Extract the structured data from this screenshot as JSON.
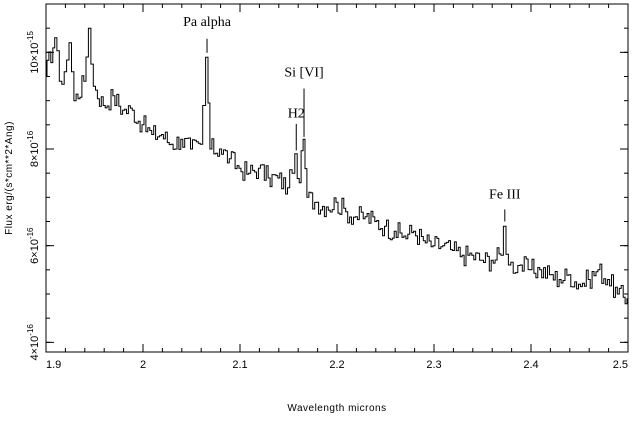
{
  "chart_data": {
    "type": "line",
    "title": "",
    "xlabel": "Wavelength  microns",
    "ylabel": "Flux  erg/(s*cm**2*Ang)",
    "xlim": [
      1.9,
      2.5
    ],
    "ylim": [
      3.8e-16,
      1.1e-15
    ],
    "grid": false,
    "legend": "none",
    "x_ticks": [
      1.9,
      2.0,
      2.1,
      2.2,
      2.3,
      2.4,
      2.5
    ],
    "x_tick_labels": [
      "1.9",
      "2",
      "2.1",
      "2.2",
      "2.3",
      "2.4",
      "2.5"
    ],
    "y_ticks": [
      4e-16,
      6e-16,
      8e-16,
      1e-15
    ],
    "y_tick_labels": [
      {
        "mant": "4",
        "exp": "-16"
      },
      {
        "mant": "6",
        "exp": "-16"
      },
      {
        "mant": "8",
        "exp": "-16"
      },
      {
        "mant": "10",
        "exp": "-15"
      }
    ],
    "series": [
      {
        "color": "#000000",
        "points": [
          [
            1.9,
            9.5e-16
          ],
          [
            1.91,
            1.03e-15
          ],
          [
            1.915,
            9.4e-16
          ],
          [
            1.92,
            9.6e-16
          ],
          [
            1.925,
            1.02e-15
          ],
          [
            1.93,
            9e-16
          ],
          [
            1.94,
            9.4e-16
          ],
          [
            1.945,
            1.05e-15
          ],
          [
            1.95,
            9.3e-16
          ],
          [
            1.96,
            8.9e-16
          ],
          [
            1.97,
            9.1e-16
          ],
          [
            1.98,
            8.8e-16
          ],
          [
            1.99,
            8.8e-16
          ],
          [
            2.0,
            8.5e-16
          ],
          [
            2.01,
            8.3e-16
          ],
          [
            2.02,
            8.3e-16
          ],
          [
            2.03,
            8.1e-16
          ],
          [
            2.04,
            8.2e-16
          ],
          [
            2.05,
            8e-16
          ],
          [
            2.06,
            8.1e-16
          ],
          [
            2.063,
            8.9e-16
          ],
          [
            2.066,
            9.9e-16
          ],
          [
            2.07,
            8e-16
          ],
          [
            2.08,
            8e-16
          ],
          [
            2.09,
            7.8e-16
          ],
          [
            2.1,
            7.6e-16
          ],
          [
            2.11,
            7.5e-16
          ],
          [
            2.12,
            7.6e-16
          ],
          [
            2.13,
            7.4e-16
          ],
          [
            2.14,
            7.4e-16
          ],
          [
            2.15,
            7.2e-16
          ],
          [
            2.155,
            7.5e-16
          ],
          [
            2.158,
            7.9e-16
          ],
          [
            2.162,
            7.3e-16
          ],
          [
            2.166,
            8.2e-16
          ],
          [
            2.17,
            7e-16
          ],
          [
            2.18,
            6.9e-16
          ],
          [
            2.19,
            6.8e-16
          ],
          [
            2.2,
            6.9e-16
          ],
          [
            2.21,
            6.7e-16
          ],
          [
            2.22,
            6.6e-16
          ],
          [
            2.23,
            6.6e-16
          ],
          [
            2.24,
            6.5e-16
          ],
          [
            2.25,
            6.4e-16
          ],
          [
            2.26,
            6.3e-16
          ],
          [
            2.27,
            6.2e-16
          ],
          [
            2.28,
            6.3e-16
          ],
          [
            2.29,
            6.1e-16
          ],
          [
            2.3,
            6e-16
          ],
          [
            2.31,
            6e-16
          ],
          [
            2.32,
            5.9e-16
          ],
          [
            2.33,
            5.8e-16
          ],
          [
            2.34,
            5.8e-16
          ],
          [
            2.35,
            5.7e-16
          ],
          [
            2.36,
            5.7e-16
          ],
          [
            2.37,
            5.8e-16
          ],
          [
            2.373,
            6.4e-16
          ],
          [
            2.378,
            5.6e-16
          ],
          [
            2.39,
            5.6e-16
          ],
          [
            2.4,
            5.5e-16
          ],
          [
            2.41,
            5.5e-16
          ],
          [
            2.42,
            5.4e-16
          ],
          [
            2.43,
            5.3e-16
          ],
          [
            2.44,
            5.4e-16
          ],
          [
            2.45,
            5.2e-16
          ],
          [
            2.46,
            5.3e-16
          ],
          [
            2.47,
            5.5e-16
          ],
          [
            2.48,
            5.3e-16
          ],
          [
            2.49,
            5e-16
          ],
          [
            2.5,
            4.9e-16
          ]
        ]
      }
    ],
    "annotations": [
      {
        "label": "Pa alpha",
        "x": 2.066,
        "y_line_bottom": 9.99e-16,
        "y_line_top": 1.028e-15,
        "y_text": 1.055e-15
      },
      {
        "label": "H2",
        "x": 2.158,
        "y_line_bottom": 7.97e-16,
        "y_line_top": 8.52e-16,
        "y_text": 8.65e-16
      },
      {
        "label": "Si [VI]",
        "x": 2.166,
        "y_line_bottom": 8.25e-16,
        "y_line_top": 9.25e-16,
        "y_text": 9.5e-16
      },
      {
        "label": "Fe III",
        "x": 2.373,
        "y_line_bottom": 6.5e-16,
        "y_line_top": 6.75e-16,
        "y_text": 6.98e-16
      }
    ]
  }
}
